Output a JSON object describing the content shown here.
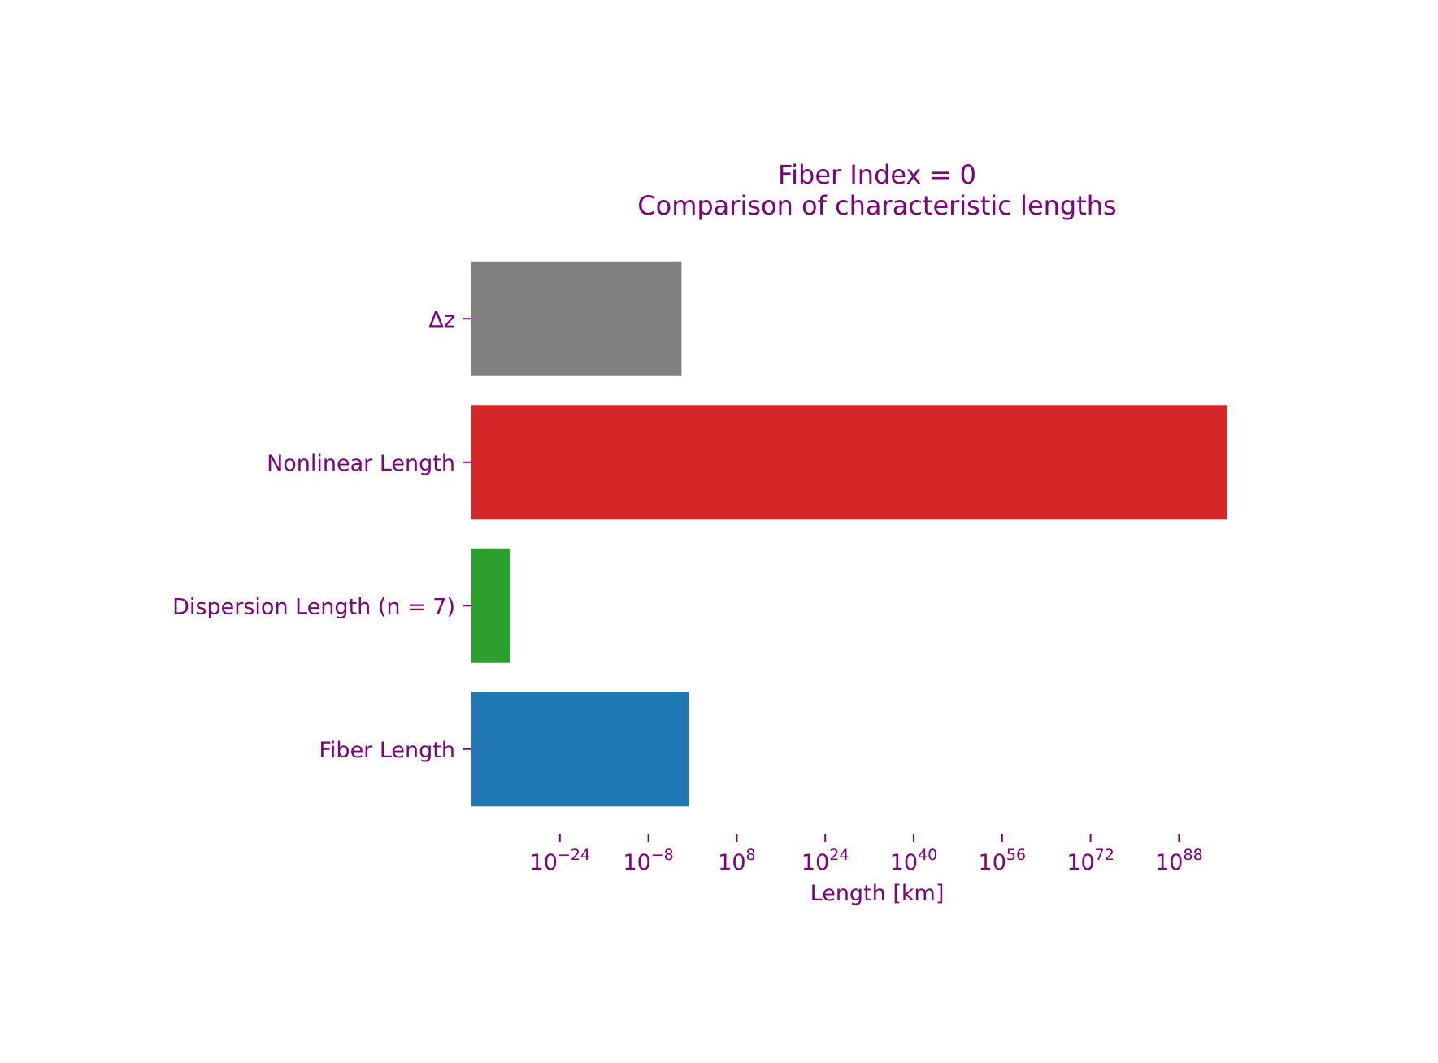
{
  "chart_data": {
    "type": "bar",
    "orientation": "horizontal",
    "title_line1": "Fiber Index = 0",
    "title_line2": "Comparison of characteristic lengths",
    "xlabel": "Length [km]",
    "ylabel": "",
    "x_scale": "log",
    "xlim": [
      1e-40,
      1e+100
    ],
    "x_ticks": [
      {
        "base": "10",
        "exp": "−24"
      },
      {
        "base": "10",
        "exp": "−8"
      },
      {
        "base": "10",
        "exp": "8"
      },
      {
        "base": "10",
        "exp": "24"
      },
      {
        "base": "10",
        "exp": "40"
      },
      {
        "base": "10",
        "exp": "56"
      },
      {
        "base": "10",
        "exp": "72"
      },
      {
        "base": "10",
        "exp": "88"
      }
    ],
    "categories": [
      "Fiber Length",
      "Dispersion Length (n = 7)",
      "Nonlinear Length",
      "Δz"
    ],
    "values": [
      0.2,
      1e-33,
      5e+96,
      0.01
    ],
    "colors": [
      "#1f77b4",
      "#2ca02c",
      "#d62728",
      "#808080"
    ],
    "text_color": "#800080",
    "grid": false,
    "legend": "none"
  }
}
